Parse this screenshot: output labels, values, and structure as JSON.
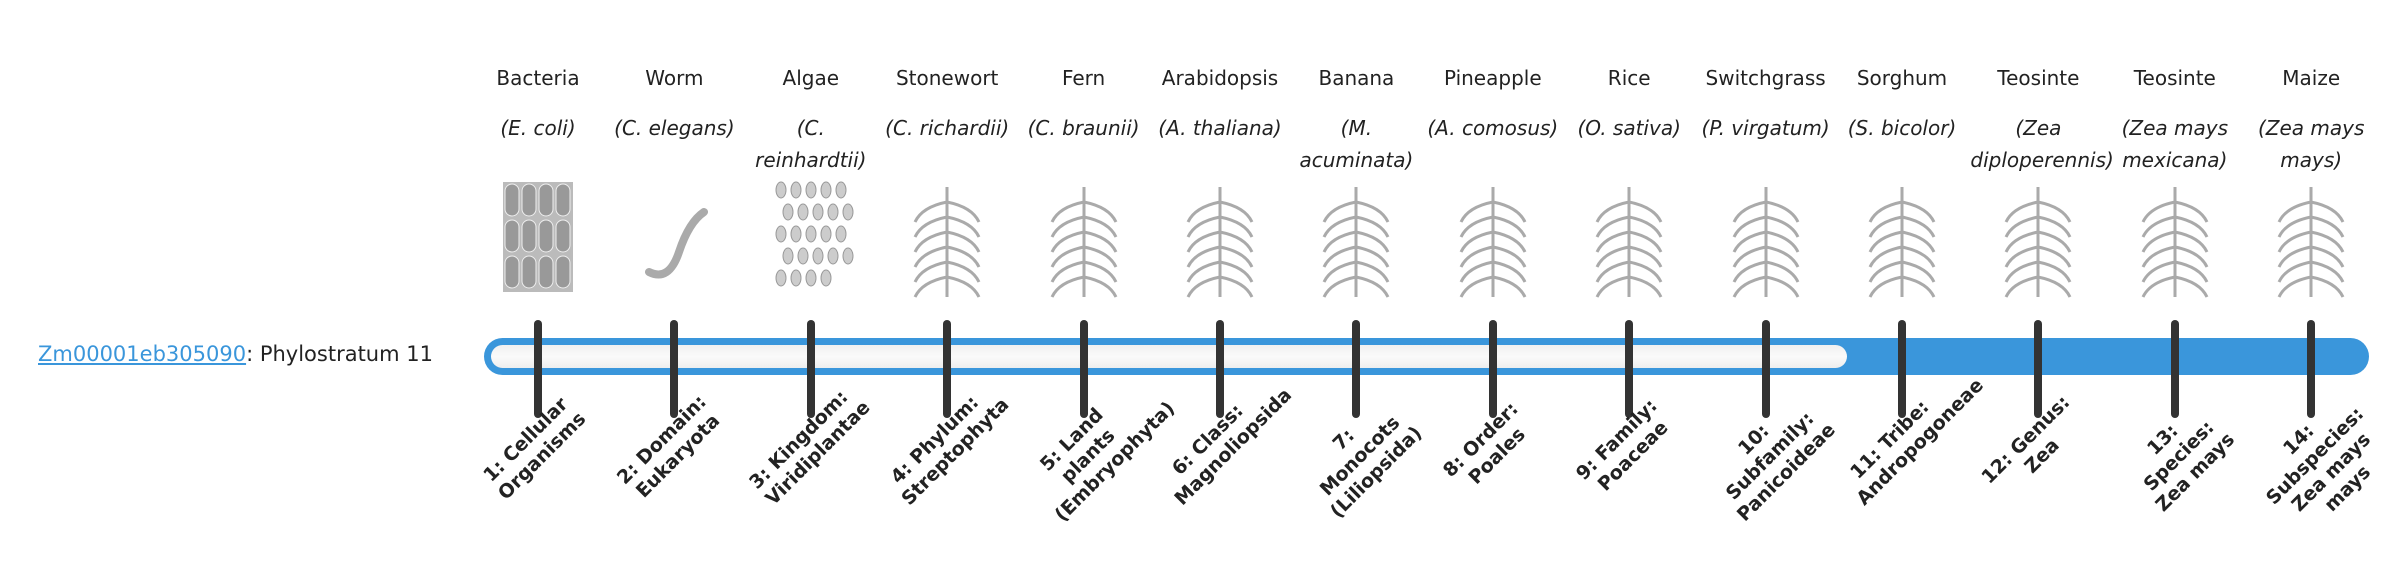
{
  "gene": {
    "id": "Zm00001eb305090",
    "suffix": ": Phylostratum 11"
  },
  "phylostratum": {
    "value": 11,
    "total": 14,
    "fill_color": "#3a96db"
  },
  "organisms": [
    {
      "common": "Bacteria",
      "scientific": "(E. coli)",
      "icon": "bacteria-icon"
    },
    {
      "common": "Worm",
      "scientific": "(C. elegans)",
      "icon": "worm-icon"
    },
    {
      "common": "Algae",
      "scientific": "(C. reinhardtii)",
      "icon": "algae-icon"
    },
    {
      "common": "Stonewort",
      "scientific": "(C. richardii)",
      "icon": "stonewort-icon"
    },
    {
      "common": "Fern",
      "scientific": "(C. braunii)",
      "icon": "fern-icon"
    },
    {
      "common": "Arabidopsis",
      "scientific": "(A. thaliana)",
      "icon": "arabidopsis-icon"
    },
    {
      "common": "Banana",
      "scientific": "(M. acuminata)",
      "icon": "banana-icon"
    },
    {
      "common": "Pineapple",
      "scientific": "(A. comosus)",
      "icon": "pineapple-icon"
    },
    {
      "common": "Rice",
      "scientific": "(O. sativa)",
      "icon": "rice-icon"
    },
    {
      "common": "Switchgrass",
      "scientific": "(P. virgatum)",
      "icon": "switchgrass-icon"
    },
    {
      "common": "Sorghum",
      "scientific": "(S. bicolor)",
      "icon": "sorghum-icon"
    },
    {
      "common": "Teosinte",
      "scientific": "(Zea diploperennis)",
      "icon": "teosinte-icon"
    },
    {
      "common": "Teosinte",
      "scientific": "(Zea mays mexicana)",
      "icon": "teosinte-icon"
    },
    {
      "common": "Maize",
      "scientific": "(Zea mays mays)",
      "icon": "maize-icon"
    }
  ],
  "strata": [
    "1: Cellular Organisms",
    "2: Domain: Eukaryota",
    "3: Kingdom: Viridiplantae",
    "4: Phylum: Streptophyta",
    "5: Land plants (Embryophyta)",
    "6: Class: Magnoliopsida",
    "7: Monocots (Liliopsida)",
    "8: Order: Poales",
    "9: Family: Poaceae",
    "10: Subfamily: Panicoideae",
    "11: Tribe: Andropogoneae",
    "12: Genus: Zea",
    "13: Species: Zea mays",
    "14: Subspecies: Zea mays mays"
  ]
}
